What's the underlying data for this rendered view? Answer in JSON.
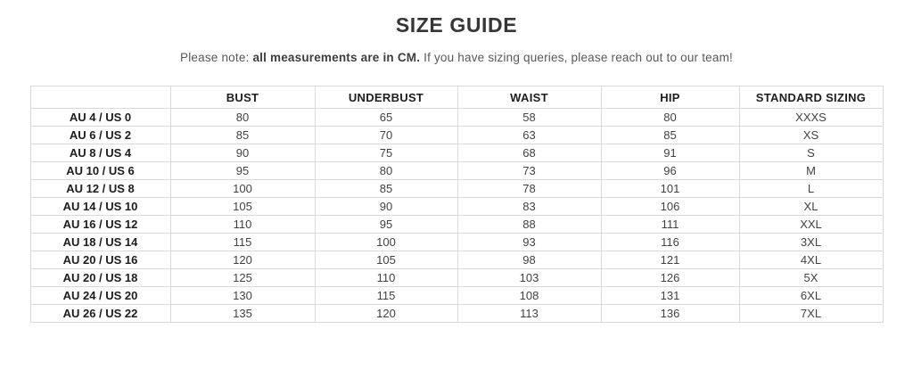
{
  "page": {
    "title": "SIZE GUIDE",
    "note": {
      "prefix": "Please note: ",
      "bold": "all measurements are in CM.",
      "suffix": " If you have sizing queries, please reach out to our team!"
    }
  },
  "colors": {
    "title_text": "#363636",
    "note_text": "#57585c",
    "table_border": "#d9d9d9",
    "header_text": "#1d1d1f",
    "cell_text": "#414244"
  },
  "table": {
    "columns": [
      "",
      "BUST",
      "UNDERBUST",
      "WAIST",
      "HIP",
      "STANDARD SIZING"
    ],
    "rows": [
      {
        "label": "AU 4 / US 0",
        "bust": "80",
        "underbust": "65",
        "waist": "58",
        "hip": "80",
        "standard_sizing": "XXXS"
      },
      {
        "label": "AU 6 / US 2",
        "bust": "85",
        "underbust": "70",
        "waist": "63",
        "hip": "85",
        "standard_sizing": "XS"
      },
      {
        "label": "AU 8 / US 4",
        "bust": "90",
        "underbust": "75",
        "waist": "68",
        "hip": "91",
        "standard_sizing": "S"
      },
      {
        "label": "AU 10 / US 6",
        "bust": "95",
        "underbust": "80",
        "waist": "73",
        "hip": "96",
        "standard_sizing": "M"
      },
      {
        "label": "AU 12 / US 8",
        "bust": "100",
        "underbust": "85",
        "waist": "78",
        "hip": "101",
        "standard_sizing": "L"
      },
      {
        "label": "AU 14 / US 10",
        "bust": "105",
        "underbust": "90",
        "waist": "83",
        "hip": "106",
        "standard_sizing": "XL"
      },
      {
        "label": "AU 16 / US 12",
        "bust": "110",
        "underbust": "95",
        "waist": "88",
        "hip": "111",
        "standard_sizing": "XXL"
      },
      {
        "label": "AU 18 / US 14",
        "bust": "115",
        "underbust": "100",
        "waist": "93",
        "hip": "116",
        "standard_sizing": "3XL"
      },
      {
        "label": "AU 20 / US 16",
        "bust": "120",
        "underbust": "105",
        "waist": "98",
        "hip": "121",
        "standard_sizing": "4XL"
      },
      {
        "label": "AU 20 / US 18",
        "bust": "125",
        "underbust": "110",
        "waist": "103",
        "hip": "126",
        "standard_sizing": "5X"
      },
      {
        "label": "AU 24 / US 20",
        "bust": "130",
        "underbust": "115",
        "waist": "108",
        "hip": "131",
        "standard_sizing": "6XL"
      },
      {
        "label": "AU 26 / US 22",
        "bust": "135",
        "underbust": "120",
        "waist": "113",
        "hip": "136",
        "standard_sizing": "7XL"
      }
    ]
  }
}
